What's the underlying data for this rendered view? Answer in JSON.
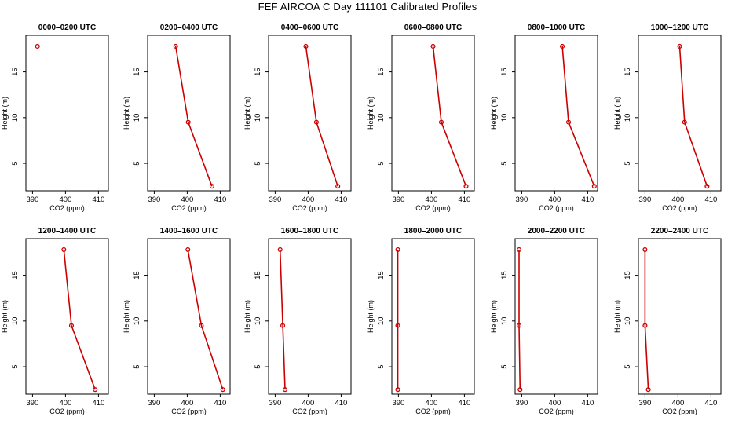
{
  "figure": {
    "title": "FEF AIRCOA C  Day 111101  Calibrated Profiles"
  },
  "chart_data": [
    {
      "type": "line",
      "title": "0000–0200 UTC",
      "xlabel": "CO2 (ppm)",
      "ylabel": "Height (m)",
      "xlim": [
        388,
        413
      ],
      "ylim": [
        2,
        19
      ],
      "xticks": [
        390,
        400,
        410
      ],
      "yticks": [
        5,
        10,
        15
      ],
      "series": [
        {
          "name": "profile",
          "color": "#cc0000",
          "points": [
            {
              "x": 391.5,
              "y": 17.8
            }
          ]
        }
      ]
    },
    {
      "type": "line",
      "title": "0200–0400 UTC",
      "xlabel": "CO2 (ppm)",
      "ylabel": "Height (m)",
      "xlim": [
        388,
        413
      ],
      "ylim": [
        2,
        19
      ],
      "xticks": [
        390,
        400,
        410
      ],
      "yticks": [
        5,
        10,
        15
      ],
      "series": [
        {
          "name": "profile",
          "color": "#cc0000",
          "points": [
            {
              "x": 396.5,
              "y": 17.8
            },
            {
              "x": 400.3,
              "y": 9.5
            },
            {
              "x": 407.5,
              "y": 2.5
            }
          ]
        }
      ]
    },
    {
      "type": "line",
      "title": "0400–0600 UTC",
      "xlabel": "CO2 (ppm)",
      "ylabel": "Height (m)",
      "xlim": [
        388,
        413
      ],
      "ylim": [
        2,
        19
      ],
      "xticks": [
        390,
        400,
        410
      ],
      "yticks": [
        5,
        10,
        15
      ],
      "series": [
        {
          "name": "profile",
          "color": "#cc0000",
          "points": [
            {
              "x": 399.3,
              "y": 17.8
            },
            {
              "x": 402.5,
              "y": 9.5
            },
            {
              "x": 409.0,
              "y": 2.5
            }
          ]
        }
      ]
    },
    {
      "type": "line",
      "title": "0600–0800 UTC",
      "xlabel": "CO2 (ppm)",
      "ylabel": "Height (m)",
      "xlim": [
        388,
        413
      ],
      "ylim": [
        2,
        19
      ],
      "xticks": [
        390,
        400,
        410
      ],
      "yticks": [
        5,
        10,
        15
      ],
      "series": [
        {
          "name": "profile",
          "color": "#cc0000",
          "points": [
            {
              "x": 400.5,
              "y": 17.8
            },
            {
              "x": 403.0,
              "y": 9.5
            },
            {
              "x": 410.5,
              "y": 2.5
            }
          ]
        }
      ]
    },
    {
      "type": "line",
      "title": "0800–1000 UTC",
      "xlabel": "CO2 (ppm)",
      "ylabel": "Height (m)",
      "xlim": [
        388,
        413
      ],
      "ylim": [
        2,
        19
      ],
      "xticks": [
        390,
        400,
        410
      ],
      "yticks": [
        5,
        10,
        15
      ],
      "series": [
        {
          "name": "profile",
          "color": "#cc0000",
          "points": [
            {
              "x": 402.3,
              "y": 17.8
            },
            {
              "x": 404.2,
              "y": 9.5
            },
            {
              "x": 412.0,
              "y": 2.5
            }
          ]
        }
      ]
    },
    {
      "type": "line",
      "title": "1000–1200 UTC",
      "xlabel": "CO2 (ppm)",
      "ylabel": "Height (m)",
      "xlim": [
        388,
        413
      ],
      "ylim": [
        2,
        19
      ],
      "xticks": [
        390,
        400,
        410
      ],
      "yticks": [
        5,
        10,
        15
      ],
      "series": [
        {
          "name": "profile",
          "color": "#cc0000",
          "points": [
            {
              "x": 400.5,
              "y": 17.8
            },
            {
              "x": 402.0,
              "y": 9.5
            },
            {
              "x": 408.8,
              "y": 2.5
            }
          ]
        }
      ]
    },
    {
      "type": "line",
      "title": "1200–1400 UTC",
      "xlabel": "CO2 (ppm)",
      "ylabel": "Height (m)",
      "xlim": [
        388,
        413
      ],
      "ylim": [
        2,
        19
      ],
      "xticks": [
        390,
        400,
        410
      ],
      "yticks": [
        5,
        10,
        15
      ],
      "series": [
        {
          "name": "profile",
          "color": "#cc0000",
          "points": [
            {
              "x": 399.5,
              "y": 17.8
            },
            {
              "x": 401.8,
              "y": 9.5
            },
            {
              "x": 409.0,
              "y": 2.5
            }
          ]
        }
      ]
    },
    {
      "type": "line",
      "title": "1400–1600 UTC",
      "xlabel": "CO2 (ppm)",
      "ylabel": "Height (m)",
      "xlim": [
        388,
        413
      ],
      "ylim": [
        2,
        19
      ],
      "xticks": [
        390,
        400,
        410
      ],
      "yticks": [
        5,
        10,
        15
      ],
      "series": [
        {
          "name": "profile",
          "color": "#cc0000",
          "points": [
            {
              "x": 400.2,
              "y": 17.8
            },
            {
              "x": 404.3,
              "y": 9.5
            },
            {
              "x": 410.8,
              "y": 2.5
            }
          ]
        }
      ]
    },
    {
      "type": "line",
      "title": "1600–1800 UTC",
      "xlabel": "CO2 (ppm)",
      "ylabel": "Height (m)",
      "xlim": [
        388,
        413
      ],
      "ylim": [
        2,
        19
      ],
      "xticks": [
        390,
        400,
        410
      ],
      "yticks": [
        5,
        10,
        15
      ],
      "series": [
        {
          "name": "profile",
          "color": "#cc0000",
          "points": [
            {
              "x": 391.5,
              "y": 17.8
            },
            {
              "x": 392.3,
              "y": 9.5
            },
            {
              "x": 393.0,
              "y": 2.5
            }
          ]
        }
      ]
    },
    {
      "type": "line",
      "title": "1800–2000 UTC",
      "xlabel": "CO2 (ppm)",
      "ylabel": "Height (m)",
      "xlim": [
        388,
        413
      ],
      "ylim": [
        2,
        19
      ],
      "xticks": [
        390,
        400,
        410
      ],
      "yticks": [
        5,
        10,
        15
      ],
      "series": [
        {
          "name": "profile",
          "color": "#cc0000",
          "points": [
            {
              "x": 389.8,
              "y": 17.8
            },
            {
              "x": 389.8,
              "y": 9.5
            },
            {
              "x": 389.8,
              "y": 2.5
            }
          ]
        }
      ]
    },
    {
      "type": "line",
      "title": "2000–2200 UTC",
      "xlabel": "CO2 (ppm)",
      "ylabel": "Height (m)",
      "xlim": [
        388,
        413
      ],
      "ylim": [
        2,
        19
      ],
      "xticks": [
        390,
        400,
        410
      ],
      "yticks": [
        5,
        10,
        15
      ],
      "series": [
        {
          "name": "profile",
          "color": "#cc0000",
          "points": [
            {
              "x": 389.2,
              "y": 17.8
            },
            {
              "x": 389.2,
              "y": 9.5
            },
            {
              "x": 389.5,
              "y": 2.5
            }
          ]
        }
      ]
    },
    {
      "type": "line",
      "title": "2200–2400 UTC",
      "xlabel": "CO2 (ppm)",
      "ylabel": "Height (m)",
      "xlim": [
        388,
        413
      ],
      "ylim": [
        2,
        19
      ],
      "xticks": [
        390,
        400,
        410
      ],
      "yticks": [
        5,
        10,
        15
      ],
      "series": [
        {
          "name": "profile",
          "color": "#cc0000",
          "points": [
            {
              "x": 390.0,
              "y": 17.8
            },
            {
              "x": 390.0,
              "y": 9.5
            },
            {
              "x": 391.0,
              "y": 2.5
            }
          ]
        }
      ]
    }
  ]
}
